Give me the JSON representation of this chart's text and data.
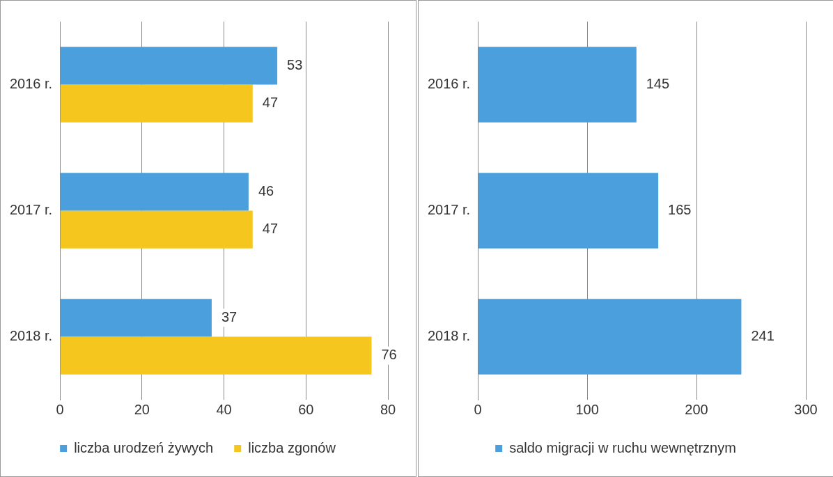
{
  "chart_data": [
    {
      "type": "bar",
      "orientation": "horizontal",
      "categories": [
        "2016 r.",
        "2017 r.",
        "2018 r."
      ],
      "series": [
        {
          "name": "liczba urodzeń żywych",
          "color": "#4a9fdc",
          "values": [
            53,
            46,
            37
          ]
        },
        {
          "name": "liczba zgonów",
          "color": "#f5c61e",
          "values": [
            47,
            47,
            76
          ]
        }
      ],
      "xlim": [
        0,
        80
      ],
      "xticks": [
        0,
        20,
        40,
        60,
        80
      ],
      "grid": "x",
      "legend": "bottom",
      "data_labels": true
    },
    {
      "type": "bar",
      "orientation": "horizontal",
      "categories": [
        "2016 r.",
        "2017 r.",
        "2018 r."
      ],
      "series": [
        {
          "name": "saldo migracji w ruchu wewnętrznym",
          "color": "#4a9fdc",
          "values": [
            145,
            165,
            241
          ]
        }
      ],
      "xlim": [
        0,
        300
      ],
      "xticks": [
        0,
        100,
        200,
        300
      ],
      "grid": "x",
      "legend": "bottom",
      "data_labels": true
    }
  ]
}
